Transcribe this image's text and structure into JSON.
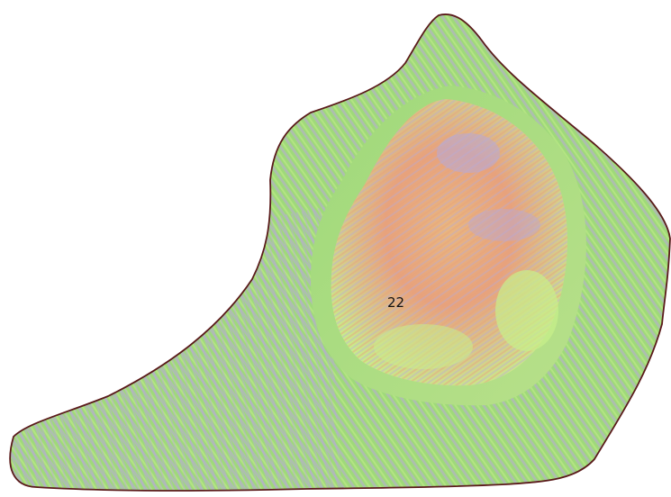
{
  "map": {
    "parcel_label": "22",
    "colors": {
      "background": "#ffffff",
      "boundary": "#5a1a1a",
      "base_green": "#9fd97a",
      "light_green": "#c8ef8a",
      "lavender": "#b7a9d8",
      "salmon": "#e8a27c",
      "orange": "#e9b77f",
      "label_text": "#111111"
    }
  }
}
